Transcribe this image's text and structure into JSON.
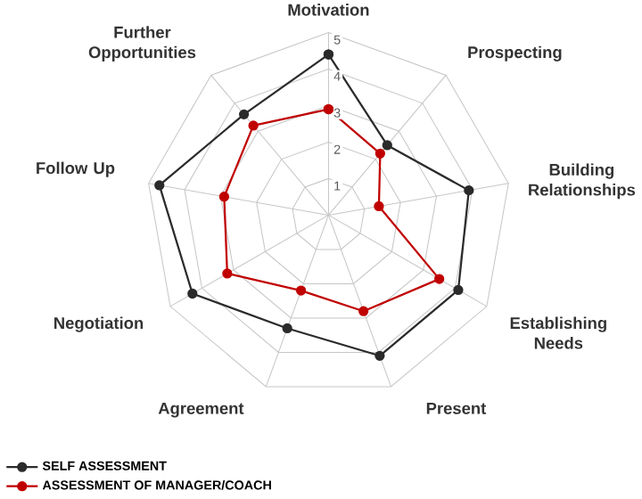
{
  "chart_data": {
    "type": "radar",
    "categories": [
      "Motivation",
      "Prospecting",
      "Building Relationships",
      "Establishing Needs",
      "Present",
      "Agreement",
      "Negotiation",
      "Follow Up",
      "Further Opportunities"
    ],
    "series": [
      {
        "name": "SELF ASSESSMENT",
        "color": "#2b2b2b",
        "values": [
          4.4,
          2.5,
          3.9,
          4.1,
          4.1,
          3.3,
          4.3,
          4.7,
          3.6
        ]
      },
      {
        "name": "ASSESSMENT OF MANAGER/COACH",
        "color": "#c00000",
        "values": [
          2.9,
          2.2,
          1.4,
          3.5,
          2.8,
          2.2,
          3.2,
          2.9,
          3.2
        ]
      }
    ],
    "ylim": [
      0,
      5
    ],
    "yticks": [
      1,
      2,
      3,
      4,
      5
    ],
    "marker": "circle",
    "legend": "bottom left"
  }
}
